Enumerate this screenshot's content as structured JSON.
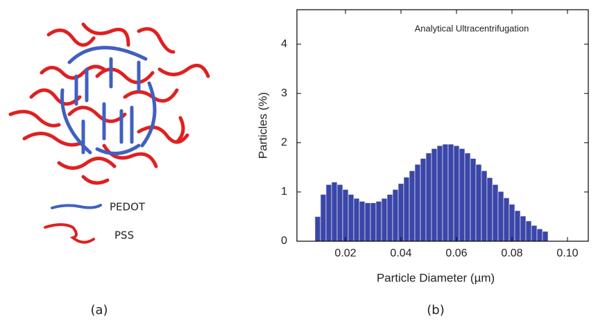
{
  "figure_a": {
    "legend": [
      "PEDOT",
      "PSS"
    ],
    "caption": "(a)"
  },
  "chart_data": {
    "type": "histogram",
    "caption": "(b)",
    "annotation": "Analytical Ultracentrifugation",
    "xlabel": "Particle Diameter (µm)",
    "ylabel": "Particles (%)",
    "bins": [
      0.009,
      0.011,
      0.013,
      0.015,
      0.017,
      0.019,
      0.021,
      0.023,
      0.025,
      0.027,
      0.029,
      0.031,
      0.033,
      0.035,
      0.037,
      0.039,
      0.041,
      0.043,
      0.045,
      0.047,
      0.049,
      0.051,
      0.053,
      0.055,
      0.057,
      0.059,
      0.061,
      0.063,
      0.065,
      0.067,
      0.069,
      0.071,
      0.073,
      0.075,
      0.077,
      0.079,
      0.081,
      0.083,
      0.085,
      0.087,
      0.089,
      0.091,
      0.093
    ],
    "values": [
      0.5,
      0.95,
      1.15,
      1.2,
      1.15,
      1.05,
      0.95,
      0.87,
      0.81,
      0.78,
      0.78,
      0.81,
      0.87,
      0.95,
      1.05,
      1.17,
      1.3,
      1.43,
      1.56,
      1.68,
      1.79,
      1.88,
      1.94,
      1.97,
      1.97,
      1.94,
      1.88,
      1.79,
      1.68,
      1.56,
      1.43,
      1.29,
      1.15,
      1.01,
      0.88,
      0.75,
      0.62,
      0.51,
      0.41,
      0.32,
      0.25,
      0.2
    ],
    "color": "#3a46a8",
    "xlim": [
      0.0025,
      0.1075
    ],
    "ylim": [
      0,
      4.7
    ],
    "xticks": [
      0.02,
      0.04,
      0.06,
      0.08,
      {
        "value": 0.1,
        "label": "0.10"
      }
    ],
    "yticks": [
      0,
      1,
      2,
      3,
      4
    ]
  }
}
